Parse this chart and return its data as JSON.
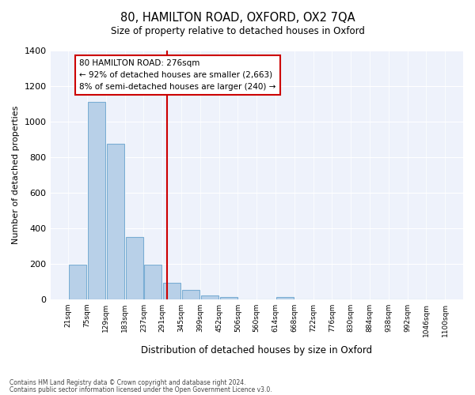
{
  "title": "80, HAMILTON ROAD, OXFORD, OX2 7QA",
  "subtitle": "Size of property relative to detached houses in Oxford",
  "xlabel": "Distribution of detached houses by size in Oxford",
  "ylabel": "Number of detached properties",
  "bin_labels": [
    "21sqm",
    "75sqm",
    "129sqm",
    "183sqm",
    "237sqm",
    "291sqm",
    "345sqm",
    "399sqm",
    "452sqm",
    "506sqm",
    "560sqm",
    "614sqm",
    "668sqm",
    "722sqm",
    "776sqm",
    "830sqm",
    "884sqm",
    "938sqm",
    "992sqm",
    "1046sqm",
    "1100sqm"
  ],
  "bar_values": [
    193,
    1112,
    877,
    351,
    193,
    91,
    55,
    20,
    13,
    0,
    0,
    12,
    0,
    0,
    0,
    0,
    0,
    0,
    0,
    0
  ],
  "bar_color": "#b8d0e8",
  "bar_edge_color": "#7aadd4",
  "property_label": "80 HAMILTON ROAD: 276sqm",
  "annotation_line1": "← 92% of detached houses are smaller (2,663)",
  "annotation_line2": "8% of semi-detached houses are larger (240) →",
  "vline_color": "#cc0000",
  "footnote1": "Contains HM Land Registry data © Crown copyright and database right 2024.",
  "footnote2": "Contains public sector information licensed under the Open Government Licence v3.0.",
  "ylim": [
    0,
    1400
  ],
  "yticks": [
    0,
    200,
    400,
    600,
    800,
    1000,
    1200,
    1400
  ],
  "background_color": "#ffffff",
  "plot_bg_color": "#eef2fb"
}
